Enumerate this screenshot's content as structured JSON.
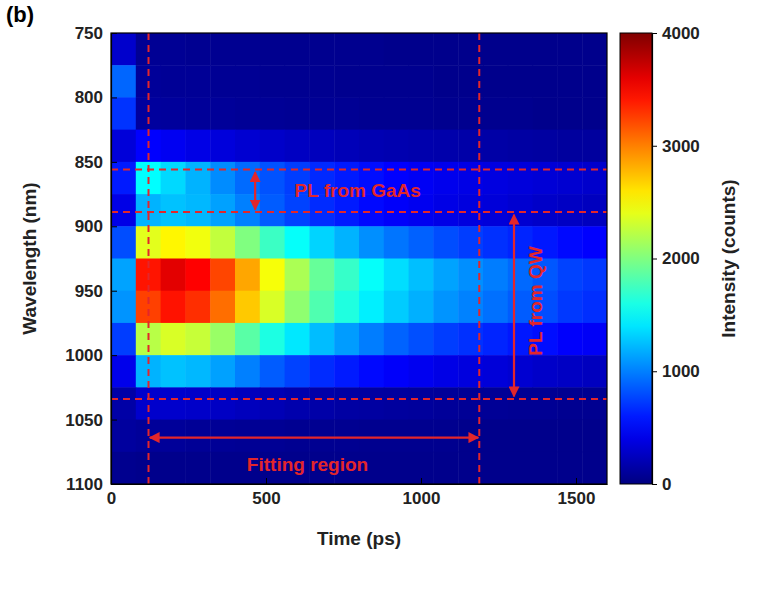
{
  "chart_data": {
    "type": "heatmap",
    "panel_label": "(b)",
    "xlabel": "Time (ps)",
    "ylabel": "Wavelength (nm)",
    "xlim": [
      0,
      1600
    ],
    "ylim": [
      1100,
      750
    ],
    "xticks": [
      0,
      500,
      1000,
      1500
    ],
    "yticks": [
      750,
      800,
      850,
      900,
      950,
      1000,
      1050,
      1100
    ],
    "x_edges": [
      0,
      80,
      160,
      240,
      320,
      400,
      480,
      560,
      640,
      720,
      800,
      880,
      960,
      1040,
      1120,
      1200,
      1280,
      1360,
      1440,
      1520,
      1600
    ],
    "y_edges": [
      750,
      775,
      800,
      825,
      850,
      875,
      900,
      925,
      950,
      975,
      1000,
      1025,
      1050,
      1075,
      1100
    ],
    "z": [
      [
        300,
        80,
        80,
        70,
        70,
        70,
        60,
        60,
        60,
        60,
        60,
        50,
        50,
        50,
        50,
        50,
        50,
        50,
        50,
        50
      ],
      [
        900,
        100,
        90,
        90,
        80,
        80,
        70,
        70,
        70,
        60,
        60,
        60,
        60,
        50,
        50,
        50,
        50,
        50,
        50,
        50
      ],
      [
        700,
        120,
        110,
        100,
        100,
        90,
        90,
        80,
        80,
        80,
        70,
        70,
        70,
        60,
        60,
        60,
        60,
        50,
        50,
        50
      ],
      [
        350,
        500,
        450,
        400,
        360,
        320,
        290,
        260,
        240,
        220,
        200,
        190,
        180,
        170,
        160,
        150,
        140,
        130,
        120,
        120
      ],
      [
        600,
        1500,
        1350,
        1200,
        1050,
        920,
        820,
        740,
        660,
        600,
        550,
        500,
        460,
        430,
        400,
        380,
        360,
        340,
        320,
        300
      ],
      [
        400,
        1200,
        1260,
        1220,
        1130,
        1000,
        860,
        760,
        670,
        600,
        530,
        480,
        440,
        400,
        370,
        350,
        320,
        290,
        270,
        250
      ],
      [
        800,
        2390,
        2530,
        2450,
        2260,
        2000,
        1730,
        1520,
        1330,
        1200,
        1060,
        960,
        880,
        800,
        740,
        690,
        640,
        590,
        530,
        500
      ],
      [
        1140,
        3420,
        3610,
        3500,
        3230,
        2850,
        2470,
        2170,
        1900,
        1710,
        1520,
        1370,
        1250,
        1140,
        1060,
        990,
        910,
        840,
        760,
        720
      ],
      [
        1080,
        3250,
        3430,
        3320,
        3070,
        2710,
        2350,
        2060,
        1810,
        1620,
        1440,
        1300,
        1190,
        1080,
        1010,
        940,
        860,
        800,
        720,
        680
      ],
      [
        740,
        2220,
        2350,
        2280,
        2100,
        1850,
        1610,
        1410,
        1240,
        1110,
        990,
        890,
        810,
        740,
        690,
        640,
        590,
        550,
        490,
        470
      ],
      [
        420,
        1200,
        1260,
        1220,
        1130,
        1000,
        860,
        760,
        670,
        600,
        530,
        480,
        440,
        400,
        370,
        350,
        320,
        290,
        270,
        250
      ],
      [
        150,
        300,
        300,
        290,
        270,
        240,
        210,
        180,
        160,
        140,
        130,
        120,
        110,
        100,
        90,
        90,
        80,
        80,
        70,
        70
      ],
      [
        120,
        100,
        100,
        90,
        90,
        80,
        80,
        70,
        70,
        70,
        60,
        60,
        60,
        60,
        50,
        50,
        50,
        50,
        50,
        50
      ],
      [
        60,
        50,
        50,
        50,
        50,
        50,
        50,
        50,
        50,
        50,
        50,
        50,
        50,
        50,
        50,
        50,
        50,
        50,
        50,
        50
      ]
    ],
    "colorbar": {
      "label": "Intensity (counts)",
      "range": [
        0,
        4000
      ],
      "ticks": [
        0,
        1000,
        2000,
        3000,
        4000
      ]
    },
    "reference_lines": {
      "x": [
        121,
        1188
      ],
      "y": [
        856,
        889,
        1034
      ]
    },
    "annotations": [
      {
        "text": "PL from GaAs",
        "x": 592,
        "y": 872,
        "arrow_x": [
          465,
          465
        ],
        "arrow_y": [
          858,
          887
        ]
      },
      {
        "text": "PL from QW",
        "x": 1370,
        "y": 958,
        "arrow_x": [
          1300,
          1300
        ],
        "arrow_y": [
          891,
          1032
        ]
      },
      {
        "text": "Fitting region",
        "x": 634,
        "y": 1085,
        "arrow_x": [
          125,
          1185
        ],
        "arrow_y": [
          1064,
          1064
        ]
      }
    ]
  }
}
